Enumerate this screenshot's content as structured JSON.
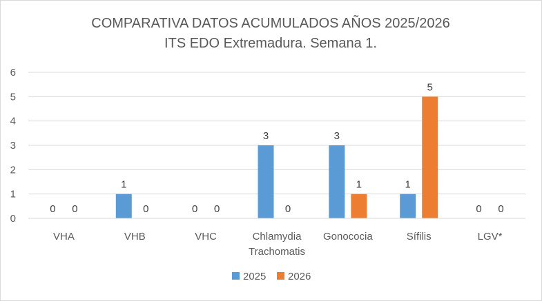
{
  "chart_data": {
    "type": "bar",
    "title": "COMPARATIVA DATOS ACUMULADOS AÑOS 2025/2026",
    "subtitle": "ITS EDO Extremadura. Semana 1.",
    "categories": [
      [
        "VHA"
      ],
      [
        "VHB"
      ],
      [
        "VHC"
      ],
      [
        "Chlamydia",
        "Trachomatis"
      ],
      [
        "Gonococia"
      ],
      [
        "Sífilis"
      ],
      [
        "LGV*"
      ]
    ],
    "series": [
      {
        "name": "2025",
        "color": "#5b9bd5",
        "values": [
          0,
          1,
          0,
          3,
          3,
          1,
          0
        ]
      },
      {
        "name": "2026",
        "color": "#ed7d31",
        "values": [
          0,
          0,
          0,
          0,
          1,
          5,
          0
        ]
      }
    ],
    "ylim": [
      0,
      6
    ],
    "yticks": [
      0,
      1,
      2,
      3,
      4,
      5,
      6
    ],
    "grid": true,
    "legend_position": "bottom",
    "data_labels": true
  }
}
